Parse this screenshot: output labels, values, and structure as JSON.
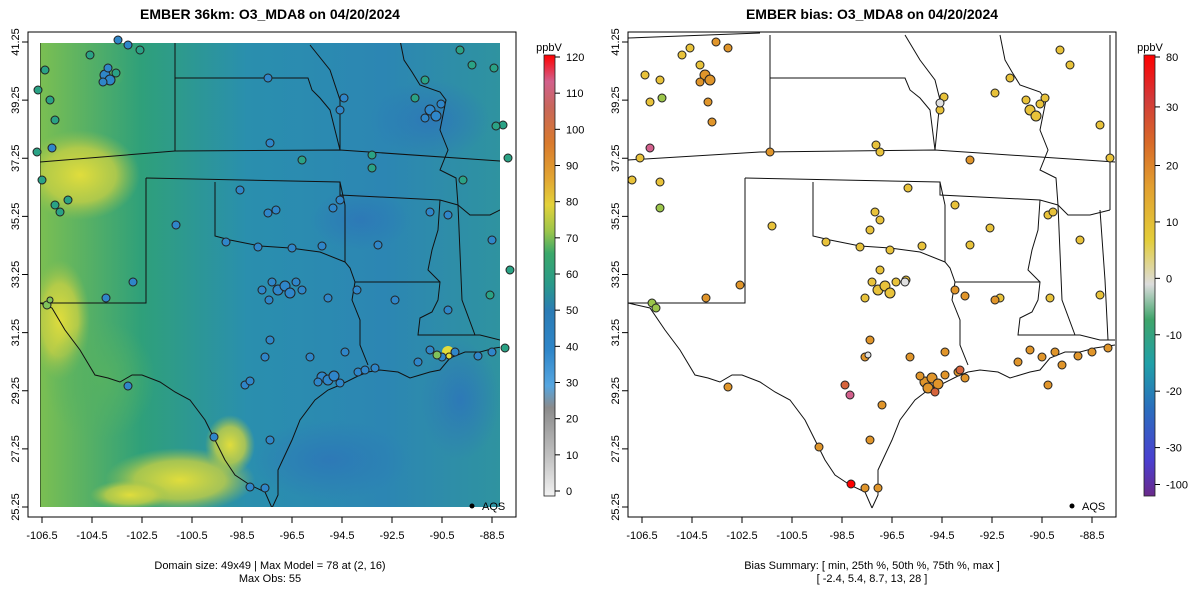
{
  "left_panel": {
    "title": "EMBER 36km: O3_MDA8 on 04/20/2024",
    "caption_line1": "Domain size: 49x49 | Max Model = 78 at (2, 16)",
    "caption_line2": "Max Obs: 55",
    "legend_label": "AQS",
    "colorbar_unit": "ppbV",
    "colorbar_ticks": [
      "0",
      "10",
      "20",
      "30",
      "40",
      "50",
      "60",
      "70",
      "80",
      "90",
      "100",
      "110",
      "120"
    ]
  },
  "right_panel": {
    "title": "EMBER bias: O3_MDA8 on 04/20/2024",
    "caption_line1": "Bias Summary: [ min, 25th %, 50th %, 75th %, max ]",
    "caption_line2": "[ -2.4,   5.4,   8.7,   13,   28 ]",
    "legend_label": "AQS",
    "colorbar_unit": "ppbV",
    "colorbar_ticks": [
      "80",
      "30",
      "20",
      "10",
      "0",
      "-10",
      "-20",
      "-30",
      "-100"
    ]
  },
  "axes": {
    "lon_ticks": [
      "-106.5",
      "-104.5",
      "-102.5",
      "-100.5",
      "-98.5",
      "-96.5",
      "-94.5",
      "-92.5",
      "-90.5",
      "-88.5"
    ],
    "lat_ticks": [
      "41.25",
      "39.25",
      "37.25",
      "35.25",
      "33.25",
      "31.25",
      "29.25",
      "27.25",
      "25.25"
    ]
  },
  "colors": {
    "field_green": "#2e9e78",
    "field_blue": "#2a7fb8",
    "field_yellow": "#d9d640",
    "bias_yellow": "#e8c23a",
    "bias_orange": "#e0952a",
    "bias_red": "#d6403c"
  },
  "chart_data": {
    "type": "heatmap",
    "panels": [
      {
        "name": "EMBER 36km: O3_MDA8",
        "variable": "O3_MDA8",
        "date": "04/20/2024",
        "xlim": [
          -107,
          -88.3
        ],
        "ylim": [
          25.25,
          41.3
        ],
        "colorbar_range": [
          0,
          120
        ],
        "domain_size": "49x49",
        "max_model": 78,
        "max_obs": 55,
        "sites": [
          {
            "lon": -104.9,
            "lat": 39.7,
            "value": 38
          },
          {
            "lon": -104.6,
            "lat": 39.5,
            "value": 36
          },
          {
            "lon": -104.8,
            "lat": 40.0,
            "value": 40
          },
          {
            "lon": -106.3,
            "lat": 31.8,
            "value": 55
          },
          {
            "lon": -96.8,
            "lat": 32.8,
            "value": 35
          },
          {
            "lon": -97.3,
            "lat": 32.7,
            "value": 37
          },
          {
            "lon": -95.4,
            "lat": 29.8,
            "value": 32
          },
          {
            "lon": -95.0,
            "lat": 29.7,
            "value": 34
          },
          {
            "lon": -94.1,
            "lat": 30.1,
            "value": 33
          },
          {
            "lon": -91.0,
            "lat": 30.4,
            "value": 40
          },
          {
            "lon": -90.1,
            "lat": 30.0,
            "value": 44
          },
          {
            "lon": -97.7,
            "lat": 30.3,
            "value": 36
          },
          {
            "lon": -98.5,
            "lat": 29.4,
            "value": 35
          },
          {
            "lon": -97.4,
            "lat": 27.8,
            "value": 36
          },
          {
            "lon": -97.5,
            "lat": 35.5,
            "value": 42
          },
          {
            "lon": -95.9,
            "lat": 36.1,
            "value": 41
          },
          {
            "lon": -94.6,
            "lat": 39.1,
            "value": 42
          },
          {
            "lon": -90.2,
            "lat": 38.6,
            "value": 40
          },
          {
            "lon": -92.3,
            "lat": 34.7,
            "value": 40
          },
          {
            "lon": -90.0,
            "lat": 35.1,
            "value": 40
          }
        ]
      },
      {
        "name": "EMBER bias: O3_MDA8",
        "variable": "O3_MDA8 bias",
        "date": "04/20/2024",
        "xlim": [
          -107,
          -88.3
        ],
        "ylim": [
          25.25,
          41.3
        ],
        "colorbar_range": [
          -100,
          80
        ],
        "summary": {
          "min": -2.4,
          "p25": 5.4,
          "p50": 8.7,
          "p75": 13,
          "max": 28
        },
        "sites": [
          {
            "lon": -104.9,
            "lat": 39.7,
            "value": 22
          },
          {
            "lon": -104.6,
            "lat": 39.5,
            "value": 20
          },
          {
            "lon": -106.3,
            "lat": 31.8,
            "value": -2
          },
          {
            "lon": -96.8,
            "lat": 32.8,
            "value": 8
          },
          {
            "lon": -97.3,
            "lat": 32.7,
            "value": 9
          },
          {
            "lon": -95.4,
            "lat": 29.8,
            "value": 17
          },
          {
            "lon": -95.0,
            "lat": 29.7,
            "value": 18
          },
          {
            "lon": -94.1,
            "lat": 30.1,
            "value": 16
          },
          {
            "lon": -91.0,
            "lat": 30.4,
            "value": 13
          },
          {
            "lon": -90.1,
            "lat": 30.0,
            "value": 12
          },
          {
            "lon": -97.7,
            "lat": 30.3,
            "value": 14
          },
          {
            "lon": -98.5,
            "lat": 29.4,
            "value": 22
          },
          {
            "lon": -97.5,
            "lat": 26.0,
            "value": 28
          },
          {
            "lon": -97.5,
            "lat": 35.5,
            "value": 7
          },
          {
            "lon": -95.9,
            "lat": 36.1,
            "value": 9
          },
          {
            "lon": -94.6,
            "lat": 39.1,
            "value": 5
          },
          {
            "lon": -90.2,
            "lat": 38.6,
            "value": 6
          },
          {
            "lon": -92.3,
            "lat": 34.7,
            "value": 8
          },
          {
            "lon": -90.0,
            "lat": 35.1,
            "value": 7
          },
          {
            "lon": -89.6,
            "lat": 41.1,
            "value": 10
          }
        ]
      }
    ]
  }
}
